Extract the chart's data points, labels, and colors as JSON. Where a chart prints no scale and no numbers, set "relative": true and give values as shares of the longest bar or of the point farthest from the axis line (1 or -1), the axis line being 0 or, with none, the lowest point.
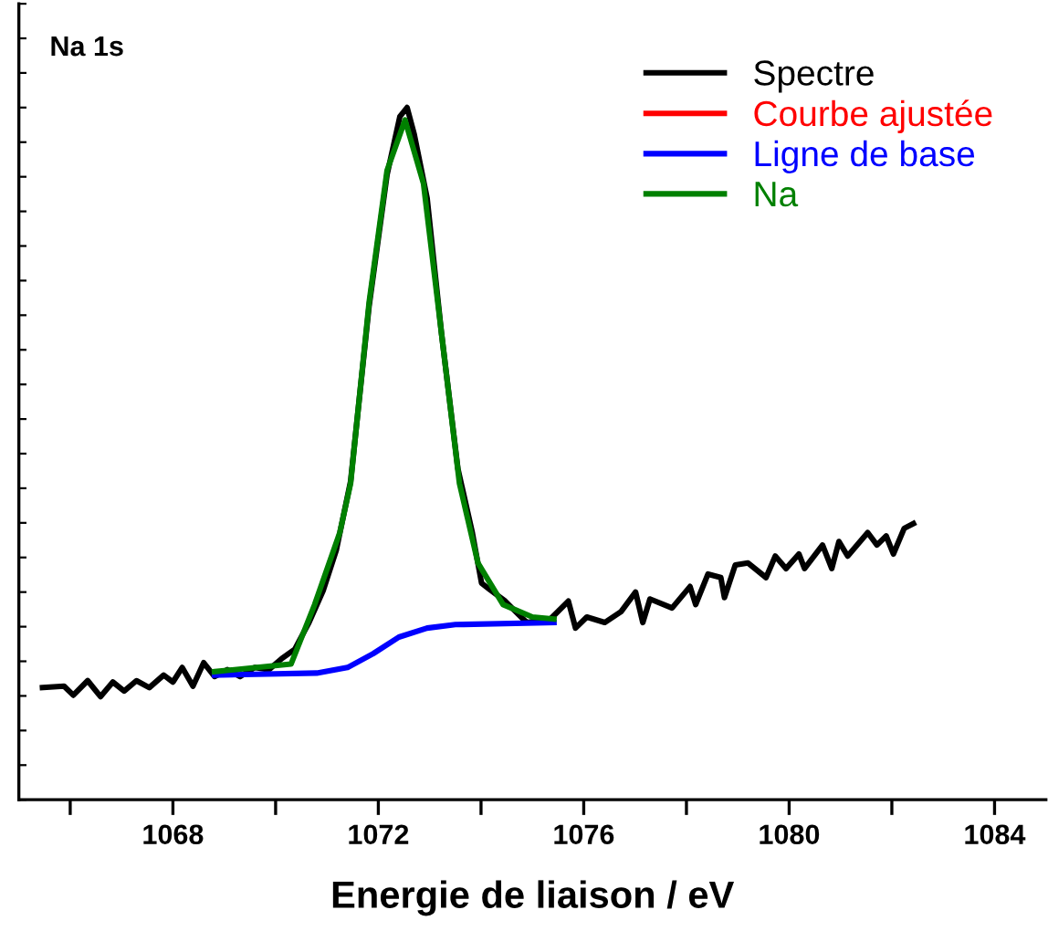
{
  "chart_data": {
    "type": "line",
    "title": "Na 1s",
    "xlabel": "Energie de liaison / eV",
    "relative": true,
    "tick_labels": "x",
    "grid": false,
    "legend": "top right",
    "marker": "none",
    "line_style": "solid",
    "xlim": [
      1065,
      1085
    ],
    "xticks": [
      {
        "value": 1066,
        "label": null
      },
      1068,
      {
        "value": 1070,
        "label": null
      },
      1072,
      {
        "value": 1074,
        "label": null
      },
      1076,
      {
        "value": 1078,
        "label": null
      },
      1080,
      {
        "value": 1082,
        "label": null
      },
      1084
    ],
    "series": [
      {
        "name": "Spectre",
        "color": "#000000",
        "x": [
          1065.46,
          1065.88,
          1066.06,
          1066.34,
          1066.59,
          1066.83,
          1067.05,
          1067.29,
          1067.54,
          1067.82,
          1068.0,
          1068.18,
          1068.39,
          1068.6,
          1068.81,
          1069.06,
          1069.31,
          1069.59,
          1069.87,
          1070.12,
          1070.37,
          1070.65,
          1070.93,
          1071.18,
          1071.46,
          1071.82,
          1072.17,
          1072.42,
          1072.56,
          1072.7,
          1072.95,
          1073.23,
          1073.55,
          1073.83,
          1074.01,
          1074.18,
          1074.47,
          1074.71,
          1074.89,
          1075.35,
          1075.7,
          1075.84,
          1076.06,
          1076.41,
          1076.73,
          1077.01,
          1077.15,
          1077.29,
          1077.72,
          1078.07,
          1078.18,
          1078.42,
          1078.67,
          1078.74,
          1078.95,
          1079.2,
          1079.55,
          1079.73,
          1079.94,
          1080.19,
          1080.3,
          1080.65,
          1080.83,
          1080.97,
          1081.14,
          1081.53,
          1081.71,
          1081.89,
          1082.03,
          1082.24,
          1082.42
        ],
        "values": [
          0.162,
          0.164,
          0.151,
          0.172,
          0.149,
          0.17,
          0.157,
          0.172,
          0.162,
          0.18,
          0.17,
          0.191,
          0.164,
          0.198,
          0.178,
          0.188,
          0.178,
          0.191,
          0.188,
          0.204,
          0.217,
          0.256,
          0.303,
          0.36,
          0.46,
          0.713,
          0.903,
          0.987,
          1.0,
          0.961,
          0.869,
          0.674,
          0.478,
          0.386,
          0.313,
          0.303,
          0.287,
          0.269,
          0.256,
          0.261,
          0.287,
          0.248,
          0.264,
          0.256,
          0.272,
          0.3,
          0.256,
          0.29,
          0.277,
          0.308,
          0.282,
          0.326,
          0.321,
          0.292,
          0.339,
          0.342,
          0.321,
          0.352,
          0.334,
          0.355,
          0.334,
          0.368,
          0.334,
          0.373,
          0.352,
          0.386,
          0.368,
          0.381,
          0.355,
          0.392,
          0.399
        ]
      },
      {
        "name": "Courbe ajustée",
        "color": "#ff0000"
      },
      {
        "name": "Ligne de base",
        "color": "#0000ff",
        "x": [
          1068.81,
          1070.8,
          1071.4,
          1071.9,
          1072.4,
          1072.95,
          1073.5,
          1075.42
        ],
        "values": [
          0.18,
          0.183,
          0.191,
          0.211,
          0.235,
          0.248,
          0.253,
          0.256
        ]
      },
      {
        "name": "Na",
        "color": "#008000",
        "x": [
          1068.81,
          1070.3,
          1070.76,
          1071.25,
          1071.46,
          1071.82,
          1072.17,
          1072.52,
          1072.88,
          1073.23,
          1073.58,
          1073.94,
          1074.43,
          1075.0,
          1075.42
        ],
        "values": [
          0.185,
          0.196,
          0.282,
          0.386,
          0.457,
          0.718,
          0.909,
          0.982,
          0.89,
          0.674,
          0.457,
          0.342,
          0.282,
          0.264,
          0.261
        ]
      }
    ]
  }
}
